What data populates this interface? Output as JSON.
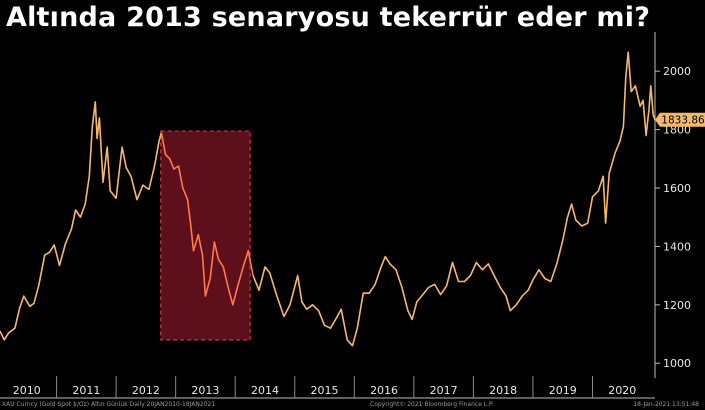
{
  "title": "Altında 2013 senaryosu tekerrür eder mi?",
  "footer": {
    "left": "XAU Curncy (Gold Spot  $/Oz) Altın Günlük  Daily 20JAN2010-18JAN2021",
    "center": "Copyright© 2021 Bloomberg Finance L.P.",
    "right": "18-Jan-2021 13:51:48"
  },
  "chart_data": {
    "type": "line",
    "title": "Altında 2013 senaryosu tekerrür eder mi?",
    "xlabel": "",
    "ylabel": "",
    "x_ticks": [
      "2010",
      "2011",
      "2012",
      "2013",
      "2014",
      "2015",
      "2016",
      "2017",
      "2018",
      "2019",
      "2020"
    ],
    "y_ticks": [
      1000,
      1200,
      1400,
      1600,
      1800,
      2000
    ],
    "xlim": [
      2010.05,
      2021.05
    ],
    "ylim": [
      970,
      2100
    ],
    "y_axis_side": "right",
    "grid": false,
    "last_value_label": "1833.86",
    "last_value": 1833.86,
    "line_color": "#f6b96b",
    "highlight_color": "#ff7a4a",
    "highlight_box": {
      "x_start": 2012.75,
      "x_end": 2014.25,
      "y_low": 1080,
      "y_high": 1795,
      "fill": "#5e0f1c",
      "stroke": "#e0303a"
    },
    "series": [
      {
        "values": [
          [
            2010.05,
            1110
          ],
          [
            2010.12,
            1080
          ],
          [
            2010.2,
            1105
          ],
          [
            2010.3,
            1120
          ],
          [
            2010.38,
            1190
          ],
          [
            2010.45,
            1230
          ],
          [
            2010.55,
            1195
          ],
          [
            2010.62,
            1205
          ],
          [
            2010.7,
            1265
          ],
          [
            2010.8,
            1370
          ],
          [
            2010.88,
            1380
          ],
          [
            2010.96,
            1405
          ],
          [
            2011.05,
            1335
          ],
          [
            2011.15,
            1410
          ],
          [
            2011.25,
            1460
          ],
          [
            2011.32,
            1525
          ],
          [
            2011.4,
            1500
          ],
          [
            2011.48,
            1545
          ],
          [
            2011.55,
            1640
          ],
          [
            2011.6,
            1810
          ],
          [
            2011.65,
            1895
          ],
          [
            2011.68,
            1770
          ],
          [
            2011.72,
            1840
          ],
          [
            2011.78,
            1620
          ],
          [
            2011.85,
            1740
          ],
          [
            2011.9,
            1590
          ],
          [
            2012.0,
            1565
          ],
          [
            2012.1,
            1740
          ],
          [
            2012.17,
            1670
          ],
          [
            2012.25,
            1640
          ],
          [
            2012.35,
            1560
          ],
          [
            2012.45,
            1610
          ],
          [
            2012.55,
            1595
          ],
          [
            2012.65,
            1680
          ],
          [
            2012.72,
            1760
          ],
          [
            2012.76,
            1790
          ],
          [
            2012.83,
            1715
          ],
          [
            2012.9,
            1700
          ],
          [
            2012.97,
            1665
          ],
          [
            2013.05,
            1675
          ],
          [
            2013.12,
            1600
          ],
          [
            2013.2,
            1560
          ],
          [
            2013.25,
            1480
          ],
          [
            2013.3,
            1385
          ],
          [
            2013.38,
            1440
          ],
          [
            2013.45,
            1370
          ],
          [
            2013.5,
            1230
          ],
          [
            2013.58,
            1290
          ],
          [
            2013.65,
            1415
          ],
          [
            2013.72,
            1355
          ],
          [
            2013.8,
            1330
          ],
          [
            2013.88,
            1260
          ],
          [
            2013.96,
            1200
          ],
          [
            2014.05,
            1270
          ],
          [
            2014.15,
            1340
          ],
          [
            2014.22,
            1385
          ],
          [
            2014.3,
            1300
          ],
          [
            2014.4,
            1250
          ],
          [
            2014.5,
            1330
          ],
          [
            2014.58,
            1310
          ],
          [
            2014.7,
            1230
          ],
          [
            2014.82,
            1160
          ],
          [
            2014.92,
            1200
          ],
          [
            2015.05,
            1300
          ],
          [
            2015.12,
            1210
          ],
          [
            2015.2,
            1185
          ],
          [
            2015.3,
            1200
          ],
          [
            2015.4,
            1180
          ],
          [
            2015.5,
            1130
          ],
          [
            2015.6,
            1120
          ],
          [
            2015.7,
            1155
          ],
          [
            2015.78,
            1185
          ],
          [
            2015.88,
            1080
          ],
          [
            2015.97,
            1060
          ],
          [
            2016.05,
            1120
          ],
          [
            2016.15,
            1240
          ],
          [
            2016.25,
            1240
          ],
          [
            2016.35,
            1270
          ],
          [
            2016.45,
            1330
          ],
          [
            2016.52,
            1365
          ],
          [
            2016.6,
            1340
          ],
          [
            2016.7,
            1320
          ],
          [
            2016.8,
            1260
          ],
          [
            2016.9,
            1180
          ],
          [
            2016.97,
            1150
          ],
          [
            2017.05,
            1210
          ],
          [
            2017.15,
            1235
          ],
          [
            2017.25,
            1260
          ],
          [
            2017.35,
            1270
          ],
          [
            2017.45,
            1235
          ],
          [
            2017.55,
            1265
          ],
          [
            2017.65,
            1345
          ],
          [
            2017.75,
            1280
          ],
          [
            2017.85,
            1280
          ],
          [
            2017.95,
            1300
          ],
          [
            2018.05,
            1345
          ],
          [
            2018.15,
            1320
          ],
          [
            2018.25,
            1340
          ],
          [
            2018.35,
            1300
          ],
          [
            2018.45,
            1260
          ],
          [
            2018.55,
            1230
          ],
          [
            2018.62,
            1180
          ],
          [
            2018.72,
            1200
          ],
          [
            2018.82,
            1230
          ],
          [
            2018.92,
            1250
          ],
          [
            2019.0,
            1285
          ],
          [
            2019.1,
            1320
          ],
          [
            2019.2,
            1290
          ],
          [
            2019.3,
            1280
          ],
          [
            2019.4,
            1340
          ],
          [
            2019.5,
            1420
          ],
          [
            2019.58,
            1500
          ],
          [
            2019.65,
            1545
          ],
          [
            2019.72,
            1490
          ],
          [
            2019.82,
            1470
          ],
          [
            2019.92,
            1480
          ],
          [
            2020.0,
            1570
          ],
          [
            2020.1,
            1590
          ],
          [
            2020.18,
            1640
          ],
          [
            2020.22,
            1480
          ],
          [
            2020.28,
            1650
          ],
          [
            2020.38,
            1720
          ],
          [
            2020.46,
            1760
          ],
          [
            2020.52,
            1810
          ],
          [
            2020.56,
            1980
          ],
          [
            2020.6,
            2065
          ],
          [
            2020.65,
            1930
          ],
          [
            2020.72,
            1950
          ],
          [
            2020.8,
            1880
          ],
          [
            2020.85,
            1900
          ],
          [
            2020.9,
            1780
          ],
          [
            2020.95,
            1870
          ],
          [
            2020.98,
            1950
          ],
          [
            2021.02,
            1850
          ],
          [
            2021.05,
            1833.86
          ]
        ]
      }
    ]
  }
}
